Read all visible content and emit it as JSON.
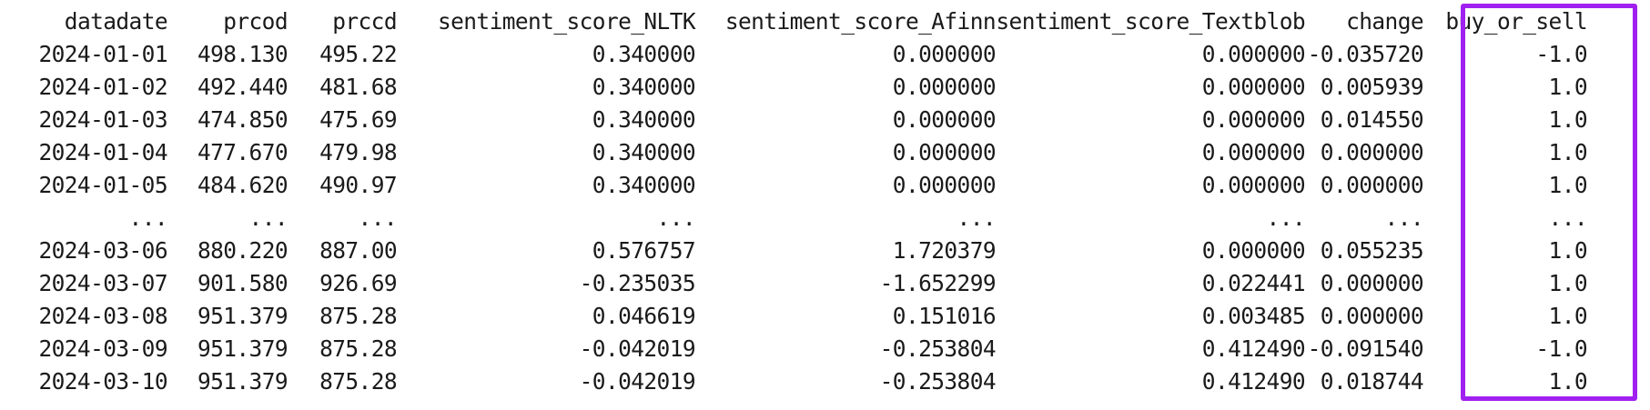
{
  "table": {
    "columns": [
      "datadate",
      "prcod",
      "prccd",
      "sentiment_score_NLTK",
      "sentiment_score_Afinn",
      "sentiment_score_Textblob",
      "change",
      "buy_or_sell"
    ],
    "rows": [
      [
        "2024-01-01",
        "498.130",
        "495.22",
        "0.340000",
        "0.000000",
        "0.000000",
        "-0.035720",
        "-1.0"
      ],
      [
        "2024-01-02",
        "492.440",
        "481.68",
        "0.340000",
        "0.000000",
        "0.000000",
        "0.005939",
        "1.0"
      ],
      [
        "2024-01-03",
        "474.850",
        "475.69",
        "0.340000",
        "0.000000",
        "0.000000",
        "0.014550",
        "1.0"
      ],
      [
        "2024-01-04",
        "477.670",
        "479.98",
        "0.340000",
        "0.000000",
        "0.000000",
        "0.000000",
        "1.0"
      ],
      [
        "2024-01-05",
        "484.620",
        "490.97",
        "0.340000",
        "0.000000",
        "0.000000",
        "0.000000",
        "1.0"
      ],
      [
        "...",
        "...",
        "...",
        "...",
        "...",
        "...",
        "...",
        "..."
      ],
      [
        "2024-03-06",
        "880.220",
        "887.00",
        "0.576757",
        "1.720379",
        "0.000000",
        "0.055235",
        "1.0"
      ],
      [
        "2024-03-07",
        "901.580",
        "926.69",
        "-0.235035",
        "-1.652299",
        "0.022441",
        "0.000000",
        "1.0"
      ],
      [
        "2024-03-08",
        "951.379",
        "875.28",
        "0.046619",
        "0.151016",
        "0.003485",
        "0.000000",
        "1.0"
      ],
      [
        "2024-03-09",
        "951.379",
        "875.28",
        "-0.042019",
        "-0.253804",
        "0.412490",
        "-0.091540",
        "-1.0"
      ],
      [
        "2024-03-10",
        "951.379",
        "875.28",
        "-0.042019",
        "-0.253804",
        "0.412490",
        "0.018744",
        "1.0"
      ]
    ]
  },
  "highlight": {
    "column": "buy_or_sell",
    "color": "#a020f0"
  }
}
